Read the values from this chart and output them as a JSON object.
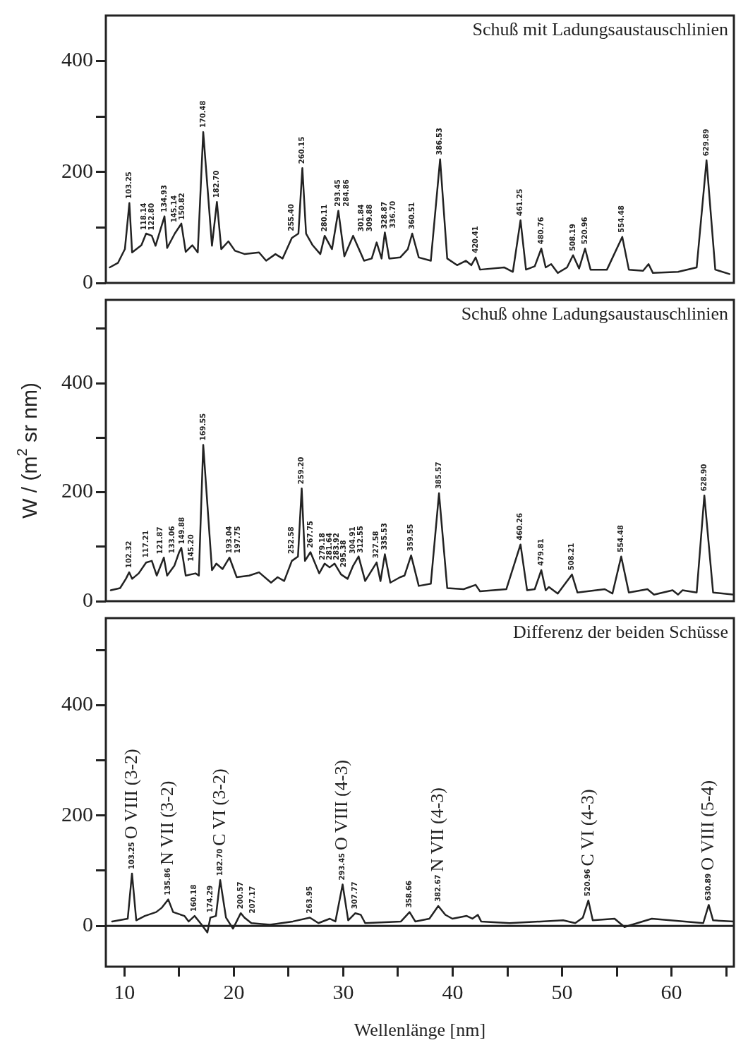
{
  "chart_data": [
    {
      "type": "line",
      "title": "Schuß mit Ladungsaustauschlinien",
      "color": "#222222",
      "marker": "none",
      "tick_labels": "y",
      "xlim": [
        8.3,
        65.7
      ],
      "ylim": [
        0,
        482
      ],
      "yticks": [
        0,
        {
          "value": 100,
          "label": null
        },
        200,
        {
          "value": 300,
          "label": null
        },
        400
      ],
      "x": [
        8.65,
        9.4,
        10.04,
        10.45,
        10.7,
        11.55,
        11.98,
        12.5,
        12.84,
        13.66,
        13.9,
        14.6,
        15.2,
        15.6,
        16.2,
        16.7,
        17.2,
        18.0,
        18.45,
        18.85,
        19.5,
        20.1,
        21.0,
        22.3,
        22.95,
        23.8,
        24.45,
        25.3,
        25.9,
        26.26,
        26.6,
        27.2,
        27.9,
        28.3,
        28.97,
        29.55,
        30.1,
        30.9,
        31.9,
        32.6,
        33.05,
        33.5,
        33.8,
        34.2,
        35.2,
        35.9,
        36.3,
        36.9,
        38.0,
        38.85,
        39.5,
        40.4,
        41.2,
        41.7,
        42.1,
        42.5,
        44.7,
        45.5,
        46.2,
        46.7,
        47.5,
        48.1,
        48.5,
        49.0,
        49.6,
        50.45,
        51.0,
        51.55,
        52.1,
        52.6,
        54.1,
        55.5,
        56.1,
        57.4,
        57.9,
        58.3,
        60.6,
        62.3,
        63.2,
        64.0,
        65.3
      ],
      "values": [
        28,
        36,
        61,
        144,
        55,
        68,
        89,
        85,
        67,
        120,
        63,
        89,
        107,
        56,
        68,
        55,
        272,
        67,
        146,
        61,
        75,
        58,
        52,
        55,
        40,
        52,
        44,
        81,
        89,
        207,
        89,
        68,
        52,
        85,
        61,
        130,
        48,
        85,
        40,
        44,
        73,
        44,
        91,
        44,
        46,
        61,
        89,
        46,
        40,
        223,
        44,
        32,
        40,
        32,
        46,
        24,
        28,
        20,
        113,
        24,
        30,
        62,
        28,
        34,
        18,
        28,
        50,
        26,
        62,
        24,
        24,
        83,
        24,
        22,
        34,
        18,
        20,
        28,
        221,
        24,
        16
      ],
      "annotations": [
        {
          "text": "103.25",
          "x": 10.45,
          "y": 144
        },
        {
          "text": "118.14",
          "x": 11.8,
          "y": 80
        },
        {
          "text": "122.80",
          "x": 12.5,
          "y": 85
        },
        {
          "text": "134.93",
          "x": 13.66,
          "y": 120
        },
        {
          "text": "145.14",
          "x": 14.6,
          "y": 89
        },
        {
          "text": "150.82",
          "x": 15.3,
          "y": 94
        },
        {
          "text": "170.48",
          "x": 17.2,
          "y": 272
        },
        {
          "text": "182.70",
          "x": 18.45,
          "y": 146
        },
        {
          "text": "255.40",
          "x": 25.3,
          "y": 81
        },
        {
          "text": "260.15",
          "x": 26.26,
          "y": 207
        },
        {
          "text": "280.11",
          "x": 28.3,
          "y": 85
        },
        {
          "text": "293.45",
          "x": 29.55,
          "y": 130
        },
        {
          "text": "284.86",
          "x": 29.55,
          "y": 130
        },
        {
          "text": "301.84",
          "x": 30.9,
          "y": 85
        },
        {
          "text": "309.88",
          "x": 30.9,
          "y": 85
        },
        {
          "text": "328.87",
          "x": 33.05,
          "y": 73
        },
        {
          "text": "336.70",
          "x": 33.8,
          "y": 91
        },
        {
          "text": "360.51",
          "x": 36.3,
          "y": 89
        },
        {
          "text": "386.53",
          "x": 38.85,
          "y": 223
        },
        {
          "text": "420.41",
          "x": 42.1,
          "y": 46
        },
        {
          "text": "461.25",
          "x": 46.2,
          "y": 113
        },
        {
          "text": "480.76",
          "x": 48.1,
          "y": 62
        },
        {
          "text": "508.19",
          "x": 51.0,
          "y": 50
        },
        {
          "text": "520.96",
          "x": 52.1,
          "y": 62
        },
        {
          "text": "554.48",
          "x": 55.5,
          "y": 83
        },
        {
          "text": "629.89",
          "x": 63.2,
          "y": 221
        }
      ]
    },
    {
      "type": "line",
      "title": "Schuß ohne Ladungsaustauschlinien",
      "ylabel": "W / (m$^{2}$ sr nm)",
      "color": "#222222",
      "marker": "none",
      "tick_labels": "y",
      "xlim": [
        8.3,
        65.7
      ],
      "ylim": [
        0,
        553
      ],
      "yticks": [
        0,
        {
          "value": 100,
          "label": null
        },
        200,
        {
          "value": 300,
          "label": null
        },
        400,
        {
          "value": 500,
          "label": null
        }
      ],
      "x": [
        8.75,
        9.6,
        10.13,
        10.43,
        10.7,
        11.3,
        11.98,
        12.5,
        12.95,
        13.6,
        13.9,
        14.56,
        15.0,
        15.2,
        15.6,
        16.5,
        16.8,
        17.2,
        18.0,
        18.4,
        18.97,
        19.6,
        20.26,
        21.4,
        22.3,
        23.4,
        24.0,
        24.6,
        25.3,
        25.86,
        26.2,
        26.5,
        27.0,
        27.8,
        28.3,
        28.75,
        29.2,
        29.8,
        30.4,
        30.9,
        31.4,
        32.0,
        33.05,
        33.4,
        33.8,
        34.3,
        35.2,
        35.6,
        36.2,
        36.9,
        38.0,
        38.75,
        39.5,
        41.0,
        42.1,
        42.5,
        44.9,
        46.2,
        46.8,
        47.5,
        48.1,
        48.5,
        48.8,
        49.6,
        50.9,
        51.4,
        53.9,
        54.6,
        55.4,
        56.1,
        57.8,
        58.4,
        60.1,
        60.6,
        61.0,
        62.3,
        63.0,
        63.8,
        65.7
      ],
      "values": [
        20,
        24,
        41,
        53,
        41,
        51,
        71,
        74,
        47,
        80,
        47,
        65,
        90,
        98,
        47,
        51,
        47,
        287,
        57,
        69,
        59,
        80,
        44,
        47,
        53,
        34,
        44,
        37,
        74,
        82,
        207,
        74,
        90,
        51,
        69,
        62,
        69,
        49,
        41,
        65,
        82,
        37,
        71,
        37,
        86,
        34,
        44,
        47,
        84,
        28,
        32,
        198,
        24,
        22,
        30,
        18,
        22,
        104,
        20,
        22,
        57,
        20,
        26,
        14,
        49,
        16,
        22,
        14,
        82,
        16,
        22,
        12,
        20,
        12,
        20,
        16,
        194,
        16,
        12
      ],
      "annotations": [
        {
          "text": "102.32",
          "x": 10.43,
          "y": 53
        },
        {
          "text": "117.21",
          "x": 11.98,
          "y": 71
        },
        {
          "text": "121.87",
          "x": 12.5,
          "y": 74
        },
        {
          "text": "133.06",
          "x": 13.6,
          "y": 80
        },
        {
          "text": "145.20",
          "x": 14.56,
          "y": 65
        },
        {
          "text": "149.88",
          "x": 15.3,
          "y": 85
        },
        {
          "text": "169.55",
          "x": 17.2,
          "y": 287
        },
        {
          "text": "193.04",
          "x": 19.6,
          "y": 80
        },
        {
          "text": "197.75",
          "x": 19.6,
          "y": 80
        },
        {
          "text": "252.58",
          "x": 25.3,
          "y": 74
        },
        {
          "text": "259.20",
          "x": 26.2,
          "y": 207
        },
        {
          "text": "267.75",
          "x": 27.0,
          "y": 90
        },
        {
          "text": "279.18",
          "x": 28.1,
          "y": 62
        },
        {
          "text": "281.64",
          "x": 28.75,
          "y": 62
        },
        {
          "text": "283.92",
          "x": 29.4,
          "y": 62
        },
        {
          "text": "295.38",
          "x": 30.05,
          "y": 46
        },
        {
          "text": "304.91",
          "x": 30.9,
          "y": 65
        },
        {
          "text": "312.55",
          "x": 31.6,
          "y": 67
        },
        {
          "text": "327.58",
          "x": 33.05,
          "y": 71
        },
        {
          "text": "335.53",
          "x": 33.8,
          "y": 86
        },
        {
          "text": "359.55",
          "x": 36.2,
          "y": 84
        },
        {
          "text": "385.57",
          "x": 38.75,
          "y": 198
        },
        {
          "text": "460.26",
          "x": 46.2,
          "y": 104
        },
        {
          "text": "479.81",
          "x": 48.1,
          "y": 57
        },
        {
          "text": "508.21",
          "x": 50.9,
          "y": 49
        },
        {
          "text": "554.48",
          "x": 55.4,
          "y": 82
        },
        {
          "text": "628.90",
          "x": 63.0,
          "y": 194
        }
      ]
    },
    {
      "type": "line",
      "title": "Differenz der beiden Schüsse",
      "xlabel": "Wellenlänge [nm]",
      "color": "#222222",
      "marker": "none",
      "xlim": [
        8.3,
        65.7
      ],
      "xticks": [
        10,
        {
          "value": 15,
          "label": null
        },
        20,
        {
          "value": 25,
          "label": null
        },
        30,
        {
          "value": 35,
          "label": null
        },
        40,
        {
          "value": 45,
          "label": null
        },
        50,
        {
          "value": 55,
          "label": null
        },
        60,
        {
          "value": 65,
          "label": null
        }
      ],
      "ylim": [
        -74,
        558
      ],
      "yticks": [
        0,
        {
          "value": 100,
          "label": null
        },
        200,
        {
          "value": 300,
          "label": null
        },
        400,
        {
          "value": 500,
          "label": null
        }
      ],
      "ref_lines": [
        {
          "axis": "y",
          "value": 0
        }
      ],
      "x": [
        8.87,
        10.3,
        10.69,
        11.08,
        11.86,
        12.9,
        13.42,
        14.0,
        14.45,
        15.48,
        15.87,
        16.41,
        16.94,
        17.58,
        17.85,
        18.36,
        18.75,
        19.28,
        19.92,
        20.63,
        20.97,
        21.6,
        23.3,
        25.39,
        26.95,
        27.73,
        28.77,
        29.28,
        29.94,
        30.45,
        31.1,
        31.6,
        32.0,
        35.27,
        36.06,
        36.58,
        37.87,
        38.68,
        39.33,
        39.97,
        41.28,
        41.8,
        42.3,
        42.6,
        45.2,
        50.1,
        51.2,
        51.9,
        52.4,
        52.8,
        54.8,
        55.7,
        58.2,
        62.9,
        63.4,
        63.8,
        65.7
      ],
      "values": [
        8,
        13,
        95,
        10,
        18,
        25,
        33,
        48,
        25,
        18,
        8,
        18,
        5,
        -12,
        15,
        18,
        83,
        15,
        -5,
        23,
        15,
        5,
        2,
        8,
        15,
        5,
        13,
        8,
        75,
        10,
        23,
        20,
        5,
        8,
        25,
        8,
        13,
        36,
        20,
        13,
        18,
        13,
        20,
        8,
        5,
        10,
        5,
        15,
        46,
        10,
        13,
        -2,
        13,
        5,
        38,
        10,
        8
      ],
      "annotations": [
        {
          "text": "103.25",
          "x": 10.69,
          "y": 95
        },
        {
          "text": "135.86",
          "x": 14.0,
          "y": 48
        },
        {
          "text": "160.18",
          "x": 16.41,
          "y": 18
        },
        {
          "text": "174.29",
          "x": 17.85,
          "y": 15
        },
        {
          "text": "182.70",
          "x": 18.75,
          "y": 83
        },
        {
          "text": "200.57",
          "x": 20.63,
          "y": 23
        },
        {
          "text": "207.17",
          "x": 20.97,
          "y": 15
        },
        {
          "text": "263.95",
          "x": 26.95,
          "y": 15
        },
        {
          "text": "293.45",
          "x": 29.94,
          "y": 75
        },
        {
          "text": "307.77",
          "x": 31.1,
          "y": 23
        },
        {
          "text": "358.66",
          "x": 36.06,
          "y": 25
        },
        {
          "text": "382.67",
          "x": 38.68,
          "y": 36
        },
        {
          "text": "520.96",
          "x": 52.4,
          "y": 46
        },
        {
          "text": "630.89",
          "x": 63.4,
          "y": 38
        },
        {
          "text": "O VIII (3-2)",
          "x": 10.69,
          "y": 95
        },
        {
          "text": "N VII (3-2)",
          "x": 14.0,
          "y": 48
        },
        {
          "text": "C VI (3-2)",
          "x": 18.75,
          "y": 83
        },
        {
          "text": "O VIII (4-3)",
          "x": 29.94,
          "y": 75
        },
        {
          "text": "N VII (4-3)",
          "x": 38.68,
          "y": 36
        },
        {
          "text": "C VI (4-3)",
          "x": 52.4,
          "y": 46
        },
        {
          "text": "O VIII (5-4)",
          "x": 63.4,
          "y": 38
        }
      ]
    }
  ]
}
